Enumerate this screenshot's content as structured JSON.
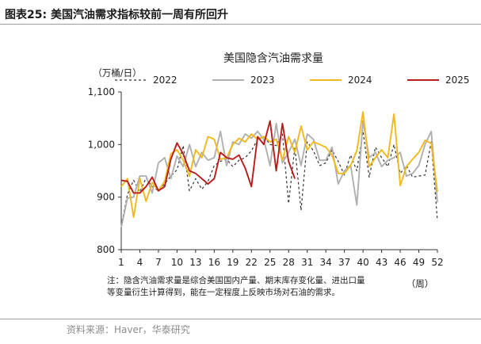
{
  "figure_title": "图表25:  美国汽油需求指标较前一周有所回升",
  "source": "资料来源：Haver，华泰研究",
  "chart_data": {
    "type": "line",
    "title": "美国隐含汽油需求量",
    "ylabel": "（万桶/日）",
    "xlabel": "（周）",
    "ylim": [
      800,
      1100
    ],
    "yticks": [
      "800",
      "900",
      "1,000",
      "1,100"
    ],
    "xlim": [
      1,
      52
    ],
    "xticks": [
      "1",
      "4",
      "7",
      "10",
      "13",
      "16",
      "19",
      "22",
      "25",
      "28",
      "31",
      "34",
      "37",
      "40",
      "43",
      "46",
      "49",
      "52"
    ],
    "legend_position": "top",
    "grid": false,
    "note": "注：隐含汽油需求量是综合美国国内产量、期末库存变化量、进出口量等变量衍生计算得到，能在一定程度上反映市场对石油的需求。",
    "series": [
      {
        "name": "2022",
        "color": "#333333",
        "style": "dashed",
        "values": [
          845,
          905,
          932,
          910,
          936,
          920,
          912,
          925,
          940,
          952,
          998,
          912,
          935,
          915,
          930,
          960,
          968,
          972,
          958,
          970,
          975,
          988,
          1010,
          1015,
          1000,
          998,
          1020,
          888,
          995,
          875,
          1005,
          988,
          960,
          965,
          990,
          968,
          942,
          980,
          950,
          1025,
          938,
          995,
          975,
          958,
          1000,
          945,
          960,
          938,
          940,
          942,
          1005,
          855
        ]
      },
      {
        "name": "2023",
        "color": "#b0b0b0",
        "style": "solid",
        "values": [
          842,
          898,
          900,
          940,
          940,
          908,
          965,
          975,
          935,
          978,
          958,
          1000,
          958,
          985,
          970,
          975,
          1025,
          960,
          1005,
          1000,
          1020,
          1012,
          1025,
          1010,
          960,
          1040,
          965,
          985,
          1010,
          960,
          1020,
          1010,
          970,
          970,
          995,
          925,
          950,
          960,
          885,
          1045,
          975,
          985,
          958,
          970,
          975,
          985,
          940,
          945,
          960,
          1000,
          1025,
          890
        ]
      },
      {
        "name": "2024",
        "color": "#f2b91c",
        "style": "solid",
        "values": [
          920,
          935,
          862,
          935,
          892,
          928,
          912,
          930,
          982,
          990,
          970,
          940,
          990,
          975,
          1015,
          1010,
          972,
          975,
          1000,
          1012,
          1005,
          1020,
          1010,
          1015,
          1005,
          1010,
          970,
          1015,
          985,
          1035,
          990,
          1005,
          1000,
          995,
          980,
          945,
          945,
          960,
          988,
          1062,
          958,
          975,
          990,
          975,
          1058,
          922,
          958,
          972,
          985,
          1008,
          1002,
          910
        ]
      },
      {
        "name": "2025",
        "color": "#b81c1c",
        "style": "solid",
        "values": [
          932,
          930,
          908,
          908,
          920,
          938,
          912,
          920,
          972,
          1003,
          982,
          950,
          945,
          935,
          925,
          935,
          985,
          975,
          972,
          980,
          955,
          920,
          1015,
          1000,
          1045,
          950,
          1040,
          968,
          935
        ]
      }
    ]
  }
}
